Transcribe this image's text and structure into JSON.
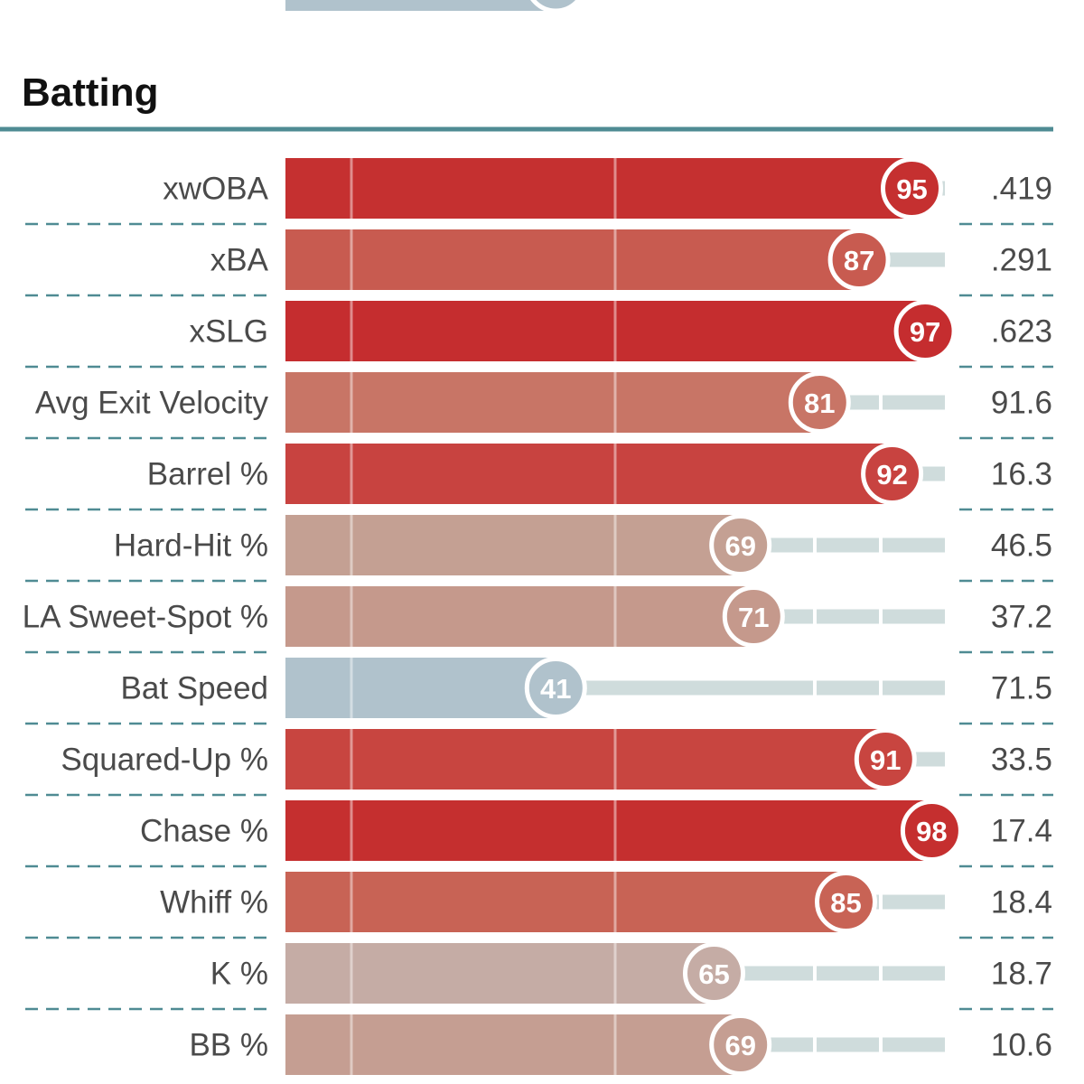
{
  "section": {
    "title": "Batting"
  },
  "chart_data": {
    "type": "bar",
    "orientation": "horizontal",
    "title": "Batting",
    "xlim": [
      0,
      100
    ],
    "reference_lines": [
      10,
      50
    ],
    "rows": [
      {
        "label": "xwOBA",
        "percentile": 95,
        "value": ".419",
        "color": "#c53030"
      },
      {
        "label": "xBA",
        "percentile": 87,
        "value": ".291",
        "color": "#c85b50"
      },
      {
        "label": "xSLG",
        "percentile": 97,
        "value": ".623",
        "color": "#c52d2f"
      },
      {
        "label": "Avg Exit Velocity",
        "percentile": 81,
        "value": "91.6",
        "color": "#c87566"
      },
      {
        "label": "Barrel %",
        "percentile": 92,
        "value": "16.3",
        "color": "#c84340"
      },
      {
        "label": "Hard-Hit %",
        "percentile": 69,
        "value": "46.5",
        "color": "#c4a093"
      },
      {
        "label": "LA Sweet-Spot %",
        "percentile": 71,
        "value": "37.2",
        "color": "#c5998c"
      },
      {
        "label": "Bat Speed",
        "percentile": 41,
        "value": "71.5",
        "color": "#b0c2cc"
      },
      {
        "label": "Squared-Up %",
        "percentile": 91,
        "value": "33.5",
        "color": "#c84540"
      },
      {
        "label": "Chase %",
        "percentile": 98,
        "value": "17.4",
        "color": "#c52f2f"
      },
      {
        "label": "Whiff %",
        "percentile": 85,
        "value": "18.4",
        "color": "#c86355"
      },
      {
        "label": "K %",
        "percentile": 65,
        "value": "18.7",
        "color": "#c5aca5"
      },
      {
        "label": "BB %",
        "percentile": 69,
        "value": "10.6",
        "color": "#c59e92"
      }
    ],
    "previous_section_tail": {
      "percentile": 41,
      "color": "#b0c2cc"
    }
  },
  "colors": {
    "divider": "#4f8b93",
    "track": "#cfdcdc",
    "row_dash": "#4f8b93",
    "ref_line": "#ffffff"
  }
}
